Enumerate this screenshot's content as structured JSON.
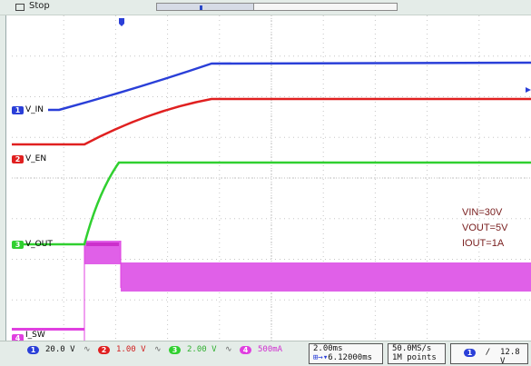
{
  "status": {
    "text": "Stop"
  },
  "traces": [
    {
      "badge": "1",
      "label": "V_IN",
      "color": "#2a3fd8"
    },
    {
      "badge": "2",
      "label": "V_EN",
      "color": "#e02020"
    },
    {
      "badge": "3",
      "label": "V_OUT",
      "color": "#30d030"
    },
    {
      "badge": "4",
      "label": "I_SW",
      "color": "#e040e0"
    }
  ],
  "annotations": {
    "vin": "VIN=30V",
    "vout": "VOUT=5V",
    "iout": "IOUT=1A"
  },
  "channels": [
    {
      "num": "1",
      "scale": "20.0 V",
      "color": "#2a3fd8"
    },
    {
      "num": "2",
      "scale": "1.00 V",
      "color": "#e02020"
    },
    {
      "num": "3",
      "scale": "2.00 V",
      "color": "#30d030"
    },
    {
      "num": "4",
      "scale": "500mA",
      "color": "#e040e0"
    }
  ],
  "timebase": {
    "scale": "2.00ms",
    "delay": "6.12000ms"
  },
  "acquisition": {
    "rate": "50.0MS/s",
    "points": "1M points"
  },
  "trigger": {
    "channel": "1",
    "slope": "/",
    "level": "12.8 V"
  }
}
